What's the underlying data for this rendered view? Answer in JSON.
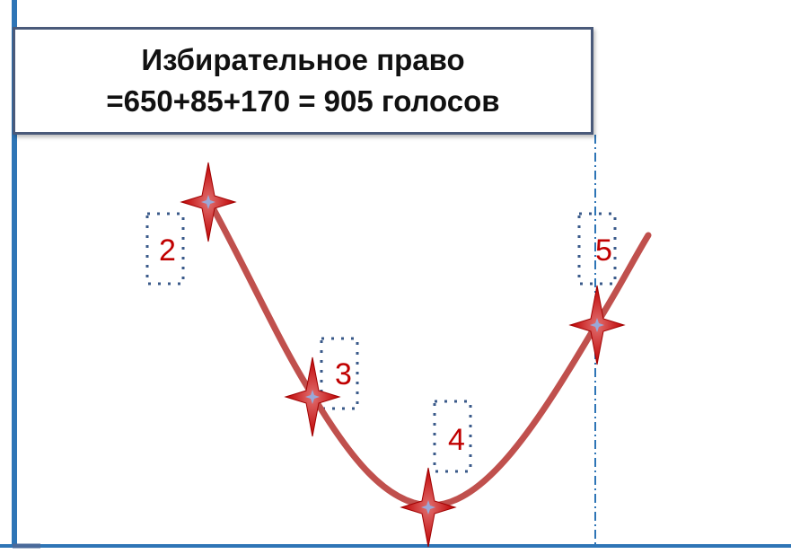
{
  "title": {
    "line1": "Избирательное право",
    "line2": "=650+85+170 = 905 голосов"
  },
  "labels": [
    "2",
    "3",
    "4",
    "5"
  ],
  "colors": {
    "curve": "#c0504d",
    "star": "#c00000",
    "axis": "#2e75b6",
    "dotted": "#3a5a8a",
    "title_border": "#4a5a7a"
  }
}
